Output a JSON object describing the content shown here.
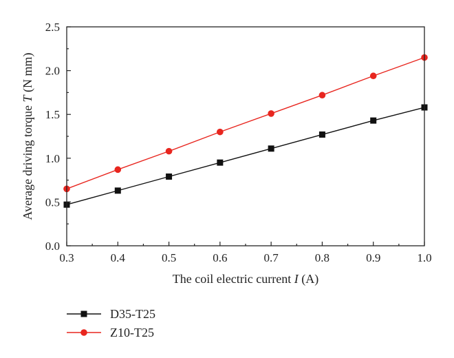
{
  "chart_data": {
    "type": "line",
    "x": [
      0.3,
      0.4,
      0.5,
      0.6,
      0.7,
      0.8,
      0.9,
      1.0
    ],
    "xlabel": {
      "prefix": "The coil electric current ",
      "symbol": "I",
      "suffix": " (A)"
    },
    "ylabel": {
      "prefix": "Average driving torque ",
      "symbol": "T",
      "suffix": " (N mm)"
    },
    "xlim": [
      0.3,
      1.0
    ],
    "ylim": [
      0.0,
      2.5
    ],
    "xticks": [
      "0.3",
      "0.4",
      "0.5",
      "0.6",
      "0.7",
      "0.8",
      "0.9",
      "1.0"
    ],
    "yticks": [
      "0.0",
      "0.5",
      "1.0",
      "1.5",
      "2.0",
      "2.5"
    ],
    "grid": false,
    "legend_position": "below-left",
    "series": [
      {
        "name": "D35-T25",
        "color": "#111111",
        "marker": "square",
        "values": [
          0.47,
          0.63,
          0.79,
          0.95,
          1.11,
          1.27,
          1.43,
          1.58
        ]
      },
      {
        "name": "Z10-T25",
        "color": "#e8261f",
        "marker": "circle",
        "values": [
          0.65,
          0.87,
          1.08,
          1.3,
          1.51,
          1.72,
          1.94,
          2.15
        ]
      }
    ]
  }
}
